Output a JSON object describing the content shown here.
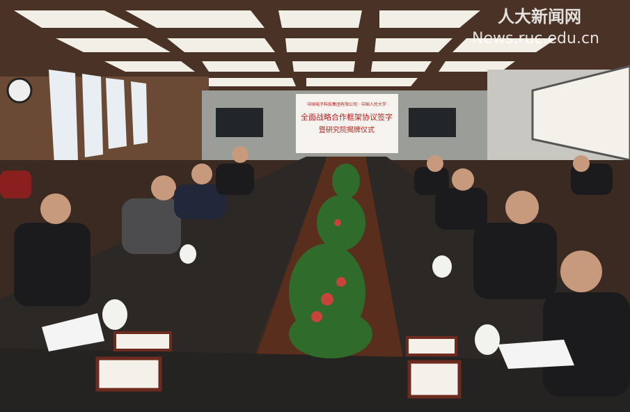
{
  "watermark": {
    "logo": "人大新闻网",
    "site": "News.ruc.edu.cn"
  },
  "screen": {
    "header": "中国电子科技集团有限公司 · 中国人民大学",
    "title": "全面战略合作框架协议签字",
    "subtitle": "暨研究院揭牌仪式"
  }
}
